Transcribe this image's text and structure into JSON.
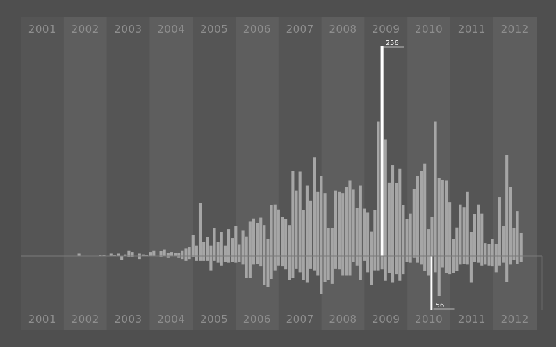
{
  "chart_data": {
    "type": "bar",
    "title": "",
    "xlabel": "",
    "ylabel": "",
    "years": [
      "2001",
      "2002",
      "2003",
      "2004",
      "2005",
      "2006",
      "2007",
      "2008",
      "2009",
      "2010",
      "2011",
      "2012"
    ],
    "up_peak": 256,
    "down_peak": 56,
    "colors": {
      "page_bg": "#4f4f4f",
      "band_dark": "#555555",
      "band_light": "#5e5e5e",
      "bar": "#a6a6a6",
      "highlight": "#ffffff",
      "year_text": "#8e8e8e"
    },
    "series": [
      {
        "direction": "up",
        "values": [
          0,
          0,
          0,
          0,
          0,
          0,
          0,
          0,
          3,
          0,
          0,
          0,
          0,
          0,
          1,
          1,
          0,
          3,
          1,
          3,
          0,
          2,
          7,
          5,
          0,
          3,
          2,
          1,
          5,
          7,
          0,
          6,
          8,
          4,
          5,
          4,
          4,
          7,
          9,
          11,
          26,
          13,
          65,
          17,
          23,
          13,
          34,
          17,
          29,
          13,
          33,
          22,
          37,
          14,
          31,
          24,
          42,
          46,
          40,
          47,
          38,
          21,
          62,
          63,
          57,
          48,
          45,
          38,
          104,
          80,
          103,
          56,
          86,
          68,
          121,
          79,
          98,
          77,
          34,
          34,
          80,
          79,
          77,
          84,
          92,
          81,
          59,
          86,
          58,
          53,
          30,
          56,
          164,
          256,
          142,
          90,
          111,
          89,
          107,
          62,
          45,
          52,
          82,
          98,
          104,
          113,
          33,
          48,
          164,
          95,
          93,
          92,
          66,
          21,
          35,
          63,
          60,
          79,
          29,
          51,
          63,
          52,
          16,
          15,
          21,
          15,
          72,
          37,
          123,
          84,
          34,
          55,
          28
        ]
      },
      {
        "direction": "down",
        "values": [
          0,
          0,
          0,
          0,
          0,
          0,
          0,
          0,
          0,
          0,
          0,
          0,
          0,
          0,
          0,
          0,
          0,
          0,
          0,
          0,
          4,
          0,
          1,
          1,
          0,
          3,
          0,
          0,
          0,
          0,
          0,
          1,
          0,
          2,
          0,
          0,
          2,
          3,
          5,
          3,
          1,
          5,
          5,
          5,
          5,
          15,
          5,
          7,
          10,
          6,
          7,
          6,
          7,
          6,
          9,
          23,
          23,
          9,
          8,
          11,
          30,
          32,
          24,
          15,
          10,
          11,
          14,
          25,
          23,
          13,
          17,
          25,
          28,
          13,
          15,
          20,
          40,
          27,
          25,
          29,
          13,
          14,
          20,
          20,
          20,
          6,
          10,
          25,
          5,
          17,
          30,
          15,
          15,
          14,
          26,
          18,
          28,
          19,
          26,
          19,
          6,
          7,
          2,
          7,
          9,
          16,
          20,
          56,
          17,
          42,
          12,
          18,
          19,
          18,
          16,
          9,
          8,
          9,
          28,
          6,
          7,
          10,
          9,
          10,
          11,
          17,
          10,
          7,
          27,
          9,
          4,
          8,
          6
        ]
      }
    ]
  }
}
